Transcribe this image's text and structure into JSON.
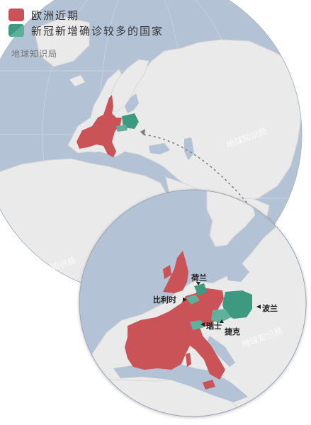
{
  "legend": {
    "items": [
      {
        "label": "欧洲近期",
        "color": "#c95357"
      },
      {
        "label": "新冠新增确诊较多的国家",
        "color": "#3d9a80",
        "color2": "#5eb09c"
      }
    ]
  },
  "source": "地球知识局",
  "watermark": "地球知识局",
  "colors": {
    "ocean": "#b3c2d4",
    "land": "#eaeaea",
    "red": "#c95357",
    "green": "#3d9a80",
    "green_light": "#5eb09c",
    "border": "#9fa9b5"
  },
  "map_labels": {
    "netherlands": "荷兰",
    "belgium": "比利时",
    "switzerland": "瑞士",
    "czech": "捷克",
    "poland": "波兰"
  }
}
